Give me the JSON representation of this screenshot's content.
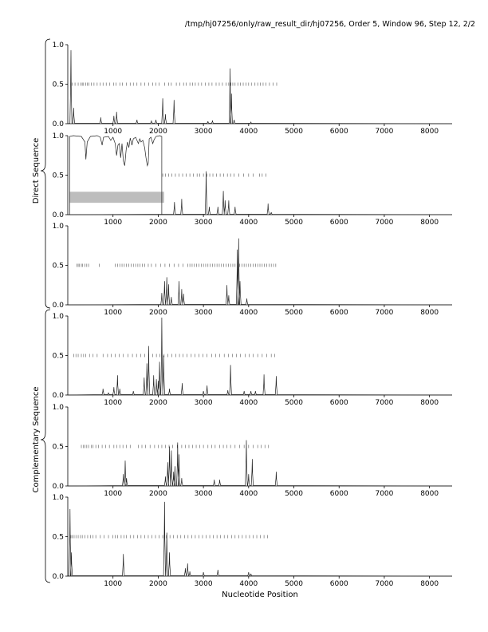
{
  "title": "/tmp/hj07256/only/raw_result_dir/hj07256, Order 5, Window 96, Step 12, 2/2",
  "groups": [
    {
      "label": "Direct Sequence",
      "panels": [
        0,
        1,
        2
      ]
    },
    {
      "label": "Complementary Sequence",
      "panels": [
        3,
        4,
        5
      ]
    }
  ],
  "chart_data": {
    "type": "line",
    "xlabel": "Nucleotide Position",
    "xlim": [
      0,
      8500
    ],
    "x_ticks": [
      1000,
      2000,
      3000,
      4000,
      5000,
      6000,
      7000,
      8000
    ],
    "ylim": [
      0,
      1
    ],
    "y_tick_labels": [
      "0.0",
      "0.5",
      "1.0"
    ],
    "grid": false,
    "panels": [
      {
        "name": "",
        "threshold_y": 0.5,
        "threshold_marks": [
          100,
          160,
          230,
          290,
          320,
          350,
          400,
          430,
          470,
          520,
          580,
          650,
          720,
          780,
          850,
          930,
          1010,
          1070,
          1150,
          1210,
          1300,
          1380,
          1450,
          1530,
          1620,
          1700,
          1790,
          1880,
          1950,
          2020,
          2140,
          2230,
          2290,
          2400,
          2480,
          2560,
          2620,
          2700,
          2760,
          2820,
          2890,
          2960,
          3040,
          3120,
          3190,
          3280,
          3350,
          3420,
          3500,
          3560,
          3610,
          3650,
          3700,
          3760,
          3820,
          3880,
          3940,
          4000,
          4060,
          4140,
          4200,
          4260,
          4320,
          4380,
          4460,
          4540,
          4620
        ],
        "peaks": [
          [
            70,
            0.93
          ],
          [
            130,
            0.2
          ],
          [
            730,
            0.08
          ],
          [
            1020,
            0.1
          ],
          [
            1080,
            0.15
          ],
          [
            1530,
            0.05
          ],
          [
            1850,
            0.04
          ],
          [
            1950,
            0.05
          ],
          [
            2100,
            0.32
          ],
          [
            2160,
            0.12
          ],
          [
            2350,
            0.3
          ],
          [
            3100,
            0.03
          ],
          [
            3200,
            0.04
          ],
          [
            3590,
            0.7
          ],
          [
            3620,
            0.38
          ],
          [
            3680,
            0.05
          ],
          [
            4050,
            0.02
          ]
        ]
      },
      {
        "name": "",
        "threshold_y": 0.5,
        "threshold_marks": [
          2100,
          2160,
          2230,
          2300,
          2380,
          2460,
          2540,
          2620,
          2700,
          2780,
          2860,
          2920,
          3000,
          3080,
          3140,
          3210,
          3290,
          3370,
          3450,
          3530,
          3600,
          3680,
          3780,
          3890,
          4000,
          4100,
          4240,
          4300,
          4380
        ],
        "top_band": [
          [
            40,
            0.99
          ],
          [
            120,
            1.0
          ],
          [
            300,
            0.99
          ],
          [
            380,
            0.92
          ],
          [
            400,
            0.7
          ],
          [
            430,
            0.92
          ],
          [
            500,
            0.99
          ],
          [
            650,
            1.0
          ],
          [
            720,
            0.98
          ],
          [
            760,
            0.88
          ],
          [
            790,
            0.98
          ],
          [
            900,
            0.99
          ],
          [
            950,
            0.94
          ],
          [
            1000,
            0.98
          ],
          [
            1050,
            0.9
          ],
          [
            1080,
            0.75
          ],
          [
            1110,
            0.88
          ],
          [
            1140,
            0.9
          ],
          [
            1170,
            0.72
          ],
          [
            1200,
            0.9
          ],
          [
            1230,
            0.68
          ],
          [
            1260,
            0.62
          ],
          [
            1290,
            0.82
          ],
          [
            1320,
            0.92
          ],
          [
            1350,
            0.85
          ],
          [
            1380,
            0.97
          ],
          [
            1420,
            0.88
          ],
          [
            1450,
            0.96
          ],
          [
            1500,
            0.98
          ],
          [
            1560,
            0.9
          ],
          [
            1590,
            0.96
          ],
          [
            1620,
            0.92
          ],
          [
            1660,
            0.94
          ],
          [
            1700,
            0.85
          ],
          [
            1730,
            0.72
          ],
          [
            1760,
            0.62
          ],
          [
            1780,
            0.65
          ],
          [
            1800,
            0.96
          ],
          [
            1840,
            0.98
          ],
          [
            1880,
            0.9
          ],
          [
            1910,
            0.95
          ],
          [
            1950,
            0.99
          ],
          [
            2030,
            1.0
          ],
          [
            2080,
            0.99
          ]
        ],
        "band": {
          "x_range": [
            40,
            2130
          ],
          "y_range": [
            0.15,
            0.29
          ]
        },
        "peaks": [
          [
            2360,
            0.16
          ],
          [
            2520,
            0.2
          ],
          [
            3060,
            0.55
          ],
          [
            3130,
            0.1
          ],
          [
            3320,
            0.1
          ],
          [
            3440,
            0.3
          ],
          [
            3480,
            0.18
          ],
          [
            3560,
            0.18
          ],
          [
            3700,
            0.1
          ],
          [
            4430,
            0.14
          ],
          [
            4500,
            0.03
          ]
        ]
      },
      {
        "name": "",
        "threshold_y": 0.5,
        "threshold_marks": [
          200,
          230,
          260,
          300,
          330,
          380,
          420,
          460,
          700,
          1050,
          1100,
          1150,
          1200,
          1250,
          1300,
          1350,
          1400,
          1450,
          1500,
          1550,
          1600,
          1650,
          1700,
          1780,
          1850,
          1950,
          2050,
          2150,
          2250,
          2350,
          2450,
          2550,
          2650,
          2700,
          2750,
          2800,
          2850,
          2900,
          2950,
          3000,
          3050,
          3100,
          3150,
          3200,
          3250,
          3300,
          3350,
          3400,
          3450,
          3500,
          3550,
          3600,
          3650,
          3700,
          3750,
          3800,
          3850,
          3900,
          3950,
          4000,
          4050,
          4100,
          4150,
          4200,
          4250,
          4300,
          4350,
          4400,
          4450,
          4500,
          4550,
          4600
        ],
        "peaks": [
          [
            2080,
            0.15
          ],
          [
            2140,
            0.3
          ],
          [
            2190,
            0.35
          ],
          [
            2230,
            0.26
          ],
          [
            2290,
            0.1
          ],
          [
            2460,
            0.3
          ],
          [
            2520,
            0.2
          ],
          [
            2560,
            0.14
          ],
          [
            3520,
            0.25
          ],
          [
            3560,
            0.12
          ],
          [
            3750,
            0.7
          ],
          [
            3780,
            0.84
          ],
          [
            3810,
            0.3
          ],
          [
            3960,
            0.08
          ]
        ]
      },
      {
        "name": "",
        "threshold_y": 0.5,
        "threshold_marks": [
          130,
          180,
          230,
          300,
          350,
          400,
          480,
          560,
          650,
          780,
          880,
          960,
          1050,
          1140,
          1230,
          1330,
          1430,
          1520,
          1610,
          1700,
          1790,
          1880,
          1960,
          2040,
          2130,
          2210,
          2300,
          2390,
          2470,
          2550,
          2640,
          2730,
          2810,
          2900,
          2990,
          3080,
          3180,
          3270,
          3360,
          3460,
          3550,
          3640,
          3730,
          3820,
          3920,
          4010,
          4100,
          4200,
          4300,
          4400,
          4500,
          4580
        ],
        "peaks": [
          [
            780,
            0.08
          ],
          [
            900,
            0.03
          ],
          [
            1020,
            0.1
          ],
          [
            1100,
            0.25
          ],
          [
            1150,
            0.08
          ],
          [
            1450,
            0.05
          ],
          [
            1690,
            0.22
          ],
          [
            1750,
            0.4
          ],
          [
            1790,
            0.62
          ],
          [
            1900,
            0.25
          ],
          [
            1960,
            0.2
          ],
          [
            2000,
            0.18
          ],
          [
            2030,
            0.42
          ],
          [
            2080,
            0.98
          ],
          [
            2120,
            0.5
          ],
          [
            2250,
            0.08
          ],
          [
            2530,
            0.15
          ],
          [
            3000,
            0.05
          ],
          [
            3080,
            0.12
          ],
          [
            3540,
            0.06
          ],
          [
            3600,
            0.38
          ],
          [
            3900,
            0.05
          ],
          [
            4050,
            0.05
          ],
          [
            4150,
            0.05
          ],
          [
            4340,
            0.26
          ],
          [
            4610,
            0.24
          ]
        ]
      },
      {
        "name": "",
        "threshold_y": 0.5,
        "threshold_marks": [
          300,
          340,
          380,
          420,
          460,
          520,
          560,
          620,
          680,
          760,
          840,
          920,
          1020,
          1080,
          1150,
          1220,
          1300,
          1380,
          1560,
          1640,
          1720,
          1820,
          1920,
          2000,
          2080,
          2160,
          2240,
          2320,
          2420,
          2520,
          2600,
          2680,
          2760,
          2840,
          2920,
          3000,
          3100,
          3180,
          3260,
          3360,
          3440,
          3520,
          3600,
          3700,
          3800,
          3900,
          4000,
          4100,
          4200,
          4280,
          4360,
          4440
        ],
        "peaks": [
          [
            1230,
            0.15
          ],
          [
            1270,
            0.32
          ],
          [
            1300,
            0.1
          ],
          [
            2160,
            0.12
          ],
          [
            2210,
            0.3
          ],
          [
            2250,
            0.5
          ],
          [
            2290,
            0.45
          ],
          [
            2340,
            0.18
          ],
          [
            2370,
            0.25
          ],
          [
            2430,
            0.55
          ],
          [
            2460,
            0.4
          ],
          [
            2520,
            0.1
          ],
          [
            3240,
            0.08
          ],
          [
            3360,
            0.08
          ],
          [
            3950,
            0.58
          ],
          [
            4000,
            0.15
          ],
          [
            4080,
            0.34
          ],
          [
            4610,
            0.18
          ]
        ]
      },
      {
        "name": "",
        "threshold_y": 0.5,
        "threshold_marks": [
          70,
          100,
          140,
          180,
          230,
          280,
          320,
          380,
          440,
          500,
          560,
          620,
          720,
          800,
          900,
          1000,
          1050,
          1100,
          1180,
          1240,
          1300,
          1380,
          1460,
          1540,
          1620,
          1700,
          1780,
          1860,
          1940,
          2020,
          2100,
          2180,
          2260,
          2340,
          2420,
          2500,
          2580,
          2660,
          2740,
          2820,
          2900,
          2980,
          3060,
          3140,
          3220,
          3300,
          3380,
          3460,
          3540,
          3620,
          3700,
          3780,
          3860,
          3940,
          4020,
          4100,
          4180,
          4260,
          4340,
          4420
        ],
        "peaks": [
          [
            50,
            0.85
          ],
          [
            80,
            0.3
          ],
          [
            1230,
            0.28
          ],
          [
            2140,
            0.94
          ],
          [
            2190,
            0.55
          ],
          [
            2250,
            0.3
          ],
          [
            2600,
            0.1
          ],
          [
            2650,
            0.16
          ],
          [
            2700,
            0.06
          ],
          [
            3000,
            0.05
          ],
          [
            3320,
            0.08
          ],
          [
            4000,
            0.05
          ],
          [
            4050,
            0.03
          ]
        ]
      }
    ]
  }
}
